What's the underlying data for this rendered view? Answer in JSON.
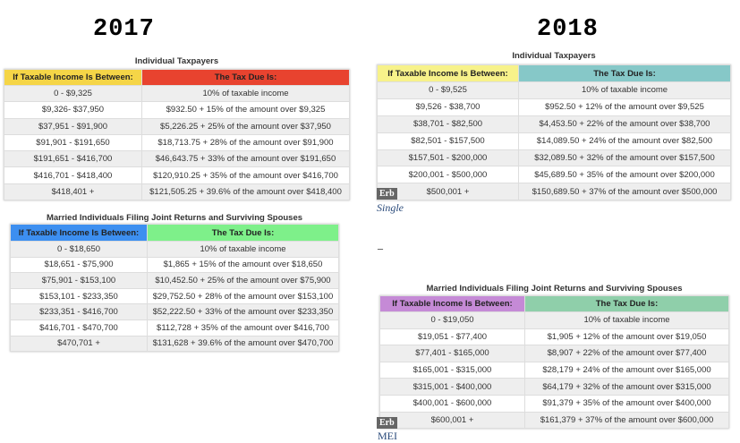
{
  "years": {
    "left": "2017",
    "right": "2018"
  },
  "tables": [
    {
      "id": "ind2017",
      "title": "Individual Taxpayers",
      "headers": [
        "If Taxable Income Is Between:",
        "The Tax Due Is:"
      ],
      "header_colors": [
        "#f5d547",
        "#e8432f"
      ],
      "rows": [
        [
          "0 - $9,325",
          "10% of taxable income"
        ],
        [
          "$9,326- $37,950",
          "$932.50 + 15% of the amount over $9,325"
        ],
        [
          "$37,951 - $91,900",
          "$5,226.25 + 25% of the amount over $37,950"
        ],
        [
          "$91,901 - $191,650",
          "$18,713.75 + 28% of the amount over $91,900"
        ],
        [
          "$191,651 - $416,700",
          "$46,643.75 + 33% of the amount over $191,650"
        ],
        [
          "$416,701 - $418,400",
          "$120,910.25 + 35% of the amount over $416,700"
        ],
        [
          "$418,401 +",
          "$121,505.25 + 39.6%  of the amount over $418,400"
        ]
      ]
    },
    {
      "id": "mar2017",
      "title": "Married Individuals Filing Joint Returns and Surviving Spouses",
      "headers": [
        "If Taxable Income Is Between:",
        "The Tax Due Is:"
      ],
      "header_colors": [
        "#3d8ff0",
        "#7ef08a"
      ],
      "rows": [
        [
          "0 - $18,650",
          "10% of taxable income"
        ],
        [
          "$18,651 - $75,900",
          "$1,865 + 15% of the amount over $18,650"
        ],
        [
          "$75,901 - $153,100",
          "$10,452.50 + 25% of the amount over $75,900"
        ],
        [
          "$153,101 - $233,350",
          "$29,752.50 + 28% of the amount over $153,100"
        ],
        [
          "$233,351 - $416,700",
          "$52,222.50 + 33% of the amount over $233,350"
        ],
        [
          "$416,701 - $470,700",
          "$112,728 + 35% of the amount over $416,700"
        ],
        [
          "$470,701 +",
          "$131,628 + 39.6%  of the amount over $470,700"
        ]
      ]
    },
    {
      "id": "ind2018",
      "title": "Individual Taxpayers",
      "headers": [
        "If Taxable Income Is Between:",
        "The Tax Due Is:"
      ],
      "header_colors": [
        "#f7f28a",
        "#86c8c8"
      ],
      "rows": [
        [
          "0 - $9,525",
          "10% of taxable income"
        ],
        [
          "$9,526 - $38,700",
          "$952.50 + 12% of the amount over $9,525"
        ],
        [
          "$38,701 - $82,500",
          "$4,453.50 + 22% of the amount over $38,700"
        ],
        [
          "$82,501 - $157,500",
          "$14,089.50 + 24% of the amount over $82,500"
        ],
        [
          "$157,501 - $200,000",
          "$32,089.50 + 32% of the amount over $157,500"
        ],
        [
          "$200,001 - $500,000",
          "$45,689.50 + 35% of the amount over $200,000"
        ],
        [
          "$500,001 +",
          "$150,689.50 + 37% of the amount over $500,000"
        ]
      ]
    },
    {
      "id": "mar2018",
      "title": "Married Individuals Filing Joint Returns and Surviving Spouses",
      "headers": [
        "If Taxable Income Is Between:",
        "The Tax Due Is:"
      ],
      "header_colors": [
        "#c58ad6",
        "#8fcfaa"
      ],
      "rows": [
        [
          "0 - $19,050",
          "10% of taxable income"
        ],
        [
          "$19,051 - $77,400",
          "$1,905 + 12% of the amount over $19,050"
        ],
        [
          "$77,401 - $165,000",
          "$8,907 + 22% of the amount over $77,400"
        ],
        [
          "$165,001 - $315,000",
          "$28,179 + 24% of the amount over $165,000"
        ],
        [
          "$315,001 - $400,000",
          "$64,179 + 32% of the amount over $315,000"
        ],
        [
          "$400,001 - $600,000",
          "$91,379 + 35% of the amount over $400,000"
        ],
        [
          "$600,001 +",
          "$161,379 + 37% of the amount over $600,000"
        ]
      ]
    }
  ],
  "badges": {
    "erb": "Erb"
  },
  "captions": {
    "single": "Single",
    "dash": "–",
    "mei": "MEI"
  }
}
